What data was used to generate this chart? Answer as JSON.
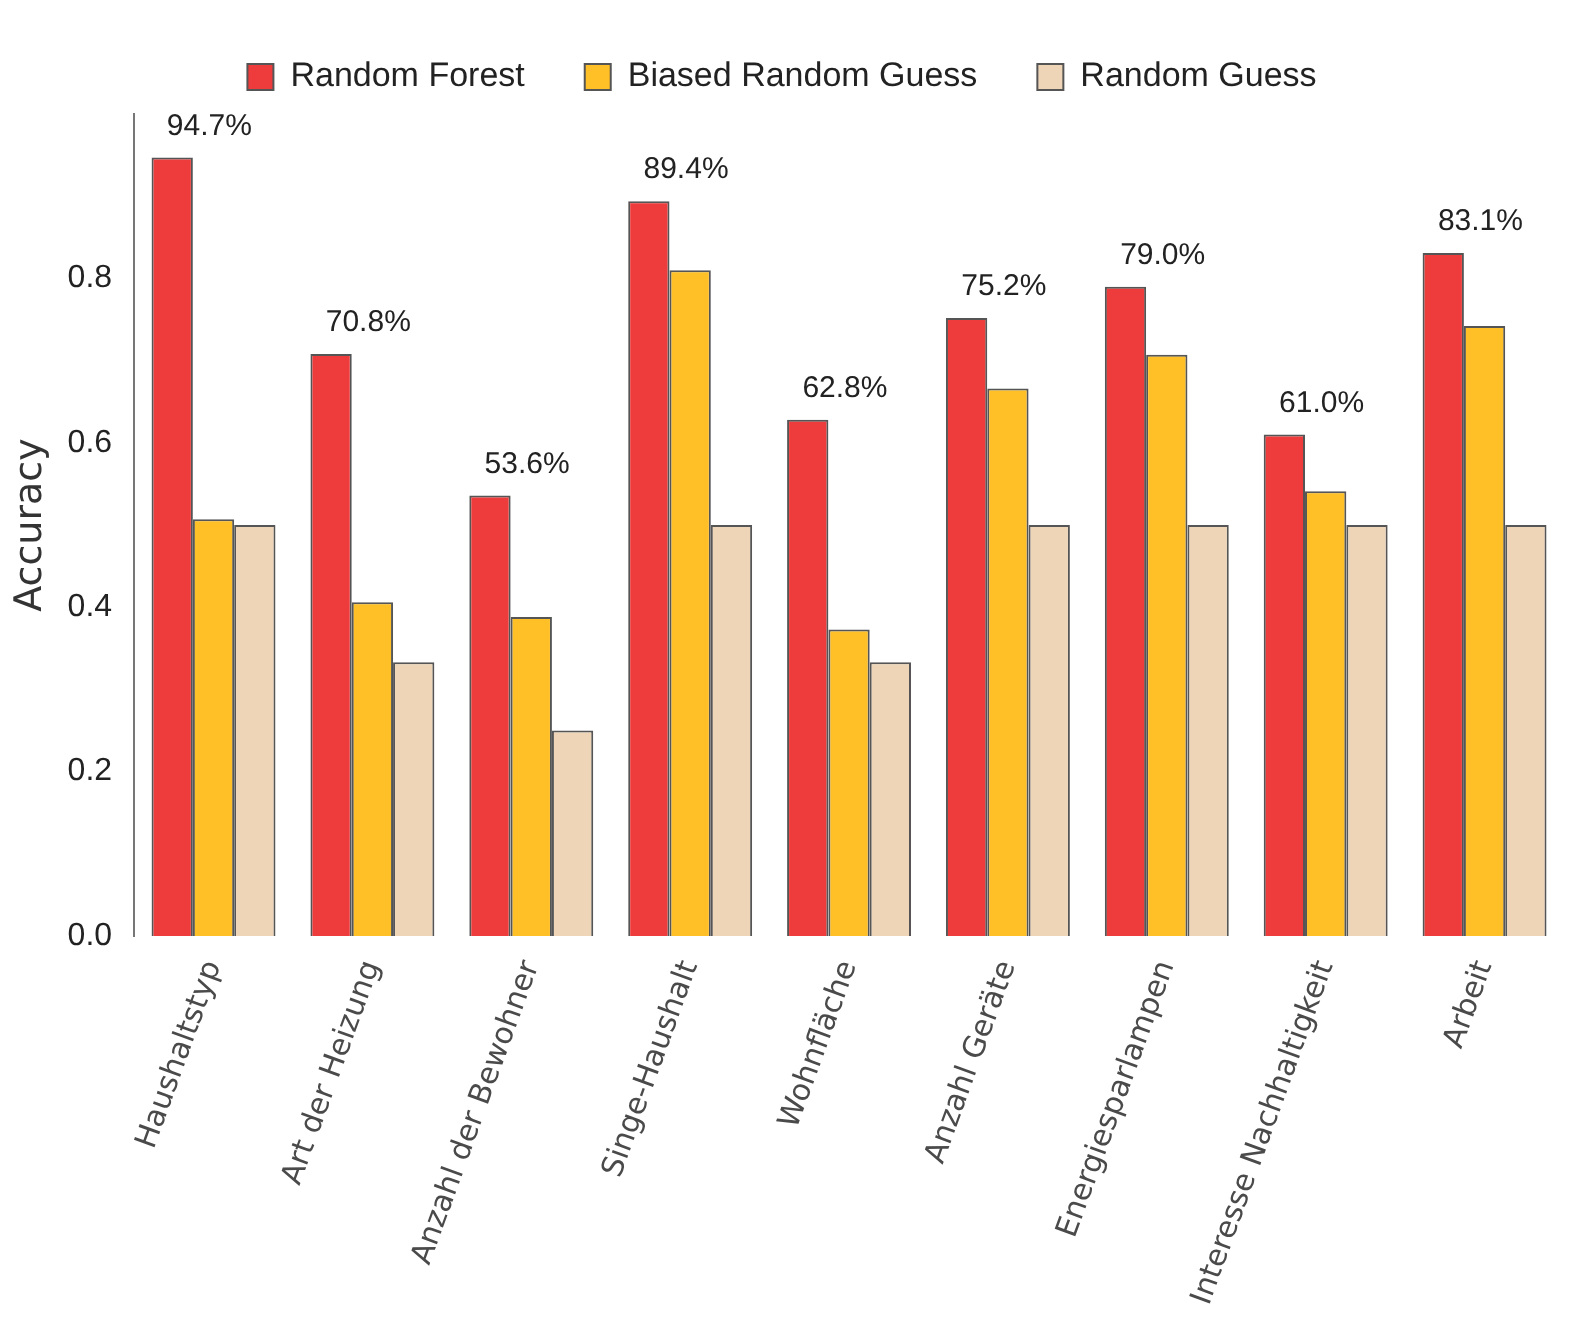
{
  "chart_data": {
    "type": "bar",
    "ylabel": "Accuracy",
    "categories": [
      "Haushaltstyp",
      "Art der Heizung",
      "Anzahl der Bewohner",
      "Singe-Haushalt",
      "Wohnfläche",
      "Anzahl Geräte",
      "Energiesparlampen",
      "Interesse Nachhaltigkeit",
      "Arbeit"
    ],
    "series": [
      {
        "name": "Random Forest",
        "color": "#ee3b3b",
        "values": [
          0.947,
          0.708,
          0.536,
          0.894,
          0.628,
          0.752,
          0.79,
          0.61,
          0.831
        ],
        "value_labels": [
          "94.7%",
          "70.8%",
          "53.6%",
          "89.4%",
          "62.8%",
          "75.2%",
          "79.0%",
          "61.0%",
          "83.1%"
        ]
      },
      {
        "name": "Biased Random Guess",
        "color": "#ffbf26",
        "values": [
          0.507,
          0.406,
          0.388,
          0.81,
          0.373,
          0.666,
          0.707,
          0.541,
          0.742
        ]
      },
      {
        "name": "Random Guess",
        "color": "#eed5b7",
        "values": [
          0.5,
          0.333,
          0.25,
          0.5,
          0.333,
          0.5,
          0.5,
          0.5,
          0.5
        ]
      }
    ],
    "ylim": [
      0,
      1
    ],
    "yticks": [
      {
        "value": 0,
        "label": "0.0"
      },
      0.2,
      0.4,
      0.6,
      0.8
    ],
    "grid": false,
    "legend": "top"
  }
}
